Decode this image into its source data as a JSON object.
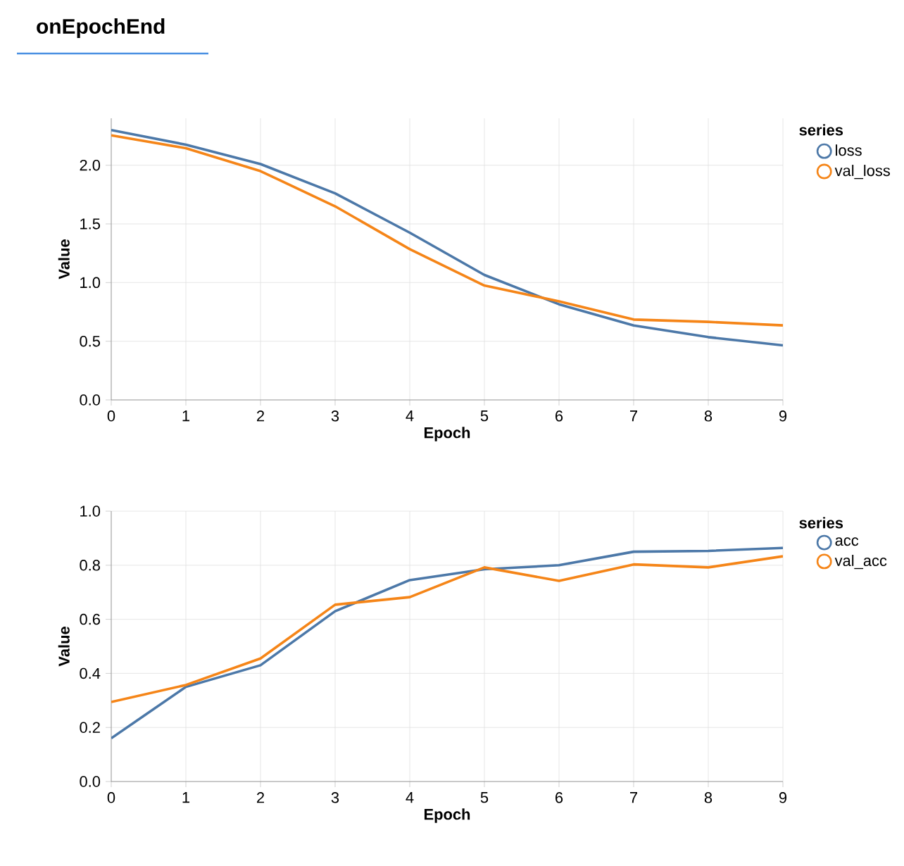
{
  "chart_data": [
    {
      "type": "line",
      "title": "onEpochEnd",
      "xlabel": "Epoch",
      "ylabel": "Value",
      "legend_title": "series",
      "x": [
        0,
        1,
        2,
        3,
        4,
        5,
        6,
        7,
        8,
        9
      ],
      "xlim": [
        0,
        9
      ],
      "xticks": [
        0,
        1,
        2,
        3,
        4,
        5,
        6,
        7,
        8,
        9
      ],
      "ylim": [
        0,
        2.4
      ],
      "yticks": [
        {
          "value": 0,
          "label": "0.0"
        },
        {
          "value": 0.5,
          "label": "0.5"
        },
        {
          "value": 1,
          "label": "1.0"
        },
        {
          "value": 1.5,
          "label": "1.5"
        },
        {
          "value": 2,
          "label": "2.0"
        }
      ],
      "grid": true,
      "legend": "top right",
      "series": [
        {
          "name": "loss",
          "color": "#4c78a8",
          "values": [
            2.3,
            2.175,
            2.01,
            1.76,
            1.425,
            1.065,
            0.815,
            0.635,
            0.535,
            0.465
          ]
        },
        {
          "name": "val_loss",
          "color": "#f58518",
          "values": [
            2.255,
            2.145,
            1.95,
            1.65,
            1.285,
            0.975,
            0.84,
            0.685,
            0.665,
            0.635
          ]
        }
      ]
    },
    {
      "type": "line",
      "xlabel": "Epoch",
      "ylabel": "Value",
      "legend_title": "series",
      "x": [
        0,
        1,
        2,
        3,
        4,
        5,
        6,
        7,
        8,
        9
      ],
      "xlim": [
        0,
        9
      ],
      "xticks": [
        0,
        1,
        2,
        3,
        4,
        5,
        6,
        7,
        8,
        9
      ],
      "ylim": [
        0,
        1
      ],
      "yticks": [
        {
          "value": 0,
          "label": "0.0"
        },
        0.2,
        0.4,
        0.6,
        0.8,
        {
          "value": 1,
          "label": "1.0"
        }
      ],
      "grid": true,
      "legend": "top right",
      "series": [
        {
          "name": "acc",
          "color": "#4c78a8",
          "values": [
            0.16,
            0.35,
            0.43,
            0.63,
            0.745,
            0.785,
            0.8,
            0.85,
            0.853,
            0.864
          ]
        },
        {
          "name": "val_acc",
          "color": "#f58518",
          "values": [
            0.294,
            0.357,
            0.455,
            0.654,
            0.682,
            0.792,
            0.742,
            0.803,
            0.792,
            0.833
          ]
        }
      ]
    }
  ]
}
